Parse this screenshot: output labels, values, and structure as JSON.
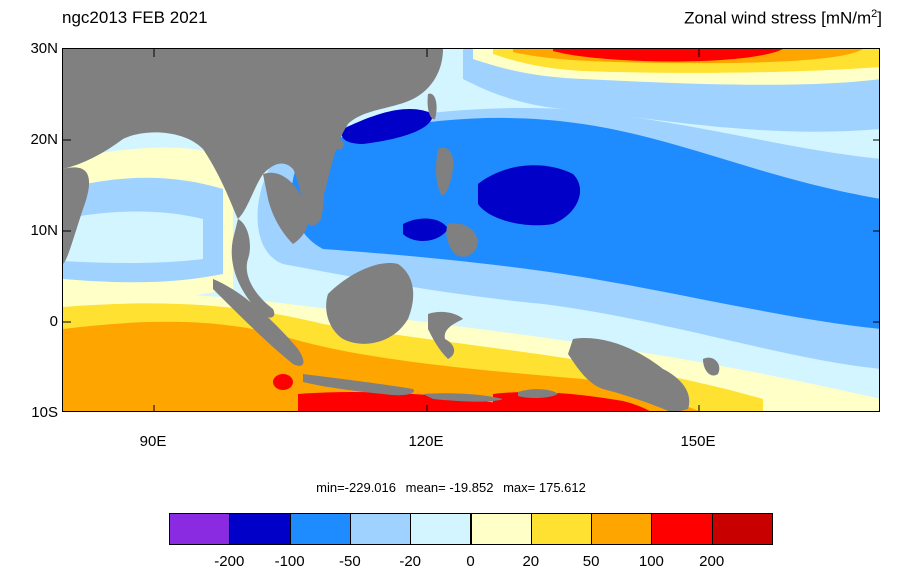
{
  "title_left": "ngc2013 FEB 2021",
  "title_right_text": "Zonal wind stress [mN/m",
  "title_right_sup": "2",
  "title_right_end": "]",
  "lat_labels": [
    "30N",
    "20N",
    "10N",
    "0",
    "10S"
  ],
  "lon_labels": [
    "90E",
    "120E",
    "150E"
  ],
  "stats": {
    "min": "min=-229.016",
    "mean": "mean= -19.852",
    "max": "max= 175.612"
  },
  "colorbar": {
    "colors": [
      "#8a2be2",
      "#0000c8",
      "#1e8cff",
      "#a0d2ff",
      "#d2f5ff",
      "#ffffc8",
      "#ffe132",
      "#ffa500",
      "#ff0000",
      "#c80000"
    ],
    "labels": [
      "-200",
      "-100",
      "-50",
      "-20",
      "0",
      "20",
      "50",
      "100",
      "200"
    ]
  },
  "land_color": "#808080"
}
